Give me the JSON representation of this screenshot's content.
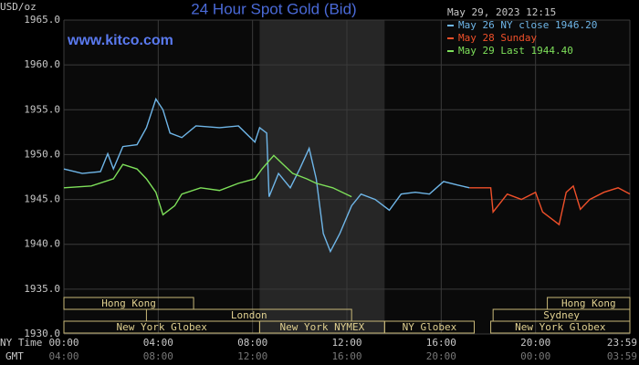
{
  "chart_data": {
    "type": "line",
    "title": "24 Hour Spot Gold (Bid)",
    "y_unit": "USD/oz",
    "watermark": "www.kitco.com",
    "timestamp": "May 29, 2023 12:15",
    "xlim": [
      0,
      24
    ],
    "xticks": [
      {
        "value": 0,
        "label": "00:00"
      },
      {
        "value": 4,
        "label": "04:00"
      },
      {
        "value": 8,
        "label": "08:00"
      },
      {
        "value": 12,
        "label": "12:00"
      },
      {
        "value": 16,
        "label": "16:00"
      },
      {
        "value": 20,
        "label": "20:00"
      },
      {
        "value": 24,
        "label": "23:59"
      }
    ],
    "x_row_label": "NY Time",
    "x2_row_label": "GMT",
    "x2_tick_labels": [
      "04:00",
      "08:00",
      "12:00",
      "16:00",
      "20:00",
      "00:00",
      "03:59"
    ],
    "ylim": [
      1930,
      1965
    ],
    "yticks": [
      {
        "value": 1930,
        "label": "1930.0"
      },
      {
        "value": 1935,
        "label": "1935.0"
      },
      {
        "value": 1940,
        "label": "1940.0"
      },
      {
        "value": 1945,
        "label": "1945.0"
      },
      {
        "value": 1950,
        "label": "1950.0"
      },
      {
        "value": 1955,
        "label": "1955.0"
      },
      {
        "value": 1960,
        "label": "1960.0"
      },
      {
        "value": 1965,
        "label": "1965.0"
      }
    ],
    "grid": true,
    "highlight": [
      8.3,
      13.6
    ],
    "series": [
      {
        "name": "May 26 NY close 1946.20",
        "color": "#6fb6e8",
        "x": [
          0,
          0.78,
          1.55,
          1.86,
          2.1,
          2.5,
          3.1,
          3.5,
          3.9,
          4.2,
          4.5,
          5.0,
          5.6,
          6.6,
          7.4,
          8.1,
          8.3,
          8.6,
          8.7,
          9.1,
          9.6,
          10.0,
          10.4,
          10.7,
          11.0,
          11.3,
          11.7,
          12.2,
          12.6,
          13.2,
          13.8,
          14.3,
          14.9,
          15.5,
          16.1,
          16.7,
          17.2
        ],
        "values": [
          1948.4,
          1947.9,
          1948.1,
          1950.1,
          1948.4,
          1950.9,
          1951.1,
          1953.0,
          1956.2,
          1955.0,
          1952.4,
          1951.9,
          1953.2,
          1953.0,
          1953.2,
          1951.4,
          1953.0,
          1952.4,
          1945.3,
          1947.9,
          1946.3,
          1948.4,
          1950.7,
          1947.3,
          1941.2,
          1939.2,
          1941.2,
          1944.3,
          1945.6,
          1945.0,
          1943.8,
          1945.6,
          1945.8,
          1945.6,
          1947.0,
          1946.6,
          1946.3
        ]
      },
      {
        "name": "May 28 Sunday",
        "color": "#f0502a",
        "x": [
          17.2,
          18.1,
          18.2,
          18.8,
          19.4,
          20.0,
          20.3,
          20.7,
          21.0,
          21.3,
          21.6,
          21.9,
          22.3,
          22.9,
          23.5,
          24.0
        ],
        "values": [
          1946.3,
          1946.3,
          1943.6,
          1945.6,
          1945.0,
          1945.8,
          1943.6,
          1942.8,
          1942.2,
          1945.8,
          1946.5,
          1943.9,
          1945.0,
          1945.8,
          1946.3,
          1945.6
        ]
      },
      {
        "name": "May 29 Last 1944.40",
        "color": "#7ee05a",
        "x": [
          0,
          1.16,
          2.1,
          2.5,
          3.1,
          3.5,
          3.9,
          4.2,
          4.7,
          5.0,
          5.8,
          6.6,
          7.4,
          8.1,
          8.4,
          8.9,
          9.3,
          9.7,
          10.3,
          10.7,
          11.4,
          12.2
        ],
        "values": [
          1946.3,
          1946.5,
          1947.3,
          1948.9,
          1948.4,
          1947.3,
          1945.8,
          1943.3,
          1944.3,
          1945.6,
          1946.3,
          1946.0,
          1946.8,
          1947.3,
          1948.4,
          1949.9,
          1948.9,
          1947.9,
          1947.3,
          1946.8,
          1946.3,
          1945.3
        ]
      }
    ],
    "session_rows": [
      [
        {
          "label": "Hong Kong",
          "start": 0,
          "end": 5.5
        },
        {
          "label": "Hong Kong",
          "start": 20.5,
          "end": 24
        }
      ],
      [
        {
          "label": "London",
          "start": 3.5,
          "end": 12.2
        },
        {
          "label": "Sydney",
          "start": 18.2,
          "end": 24
        }
      ],
      [
        {
          "label": "New York Globex",
          "start": 0,
          "end": 8.3
        },
        {
          "label": "New York NYMEX",
          "start": 8.3,
          "end": 13.6
        },
        {
          "label": "NY Globex",
          "start": 13.6,
          "end": 17.4
        },
        {
          "label": "New York Globex",
          "start": 18.1,
          "end": 24
        }
      ]
    ]
  }
}
